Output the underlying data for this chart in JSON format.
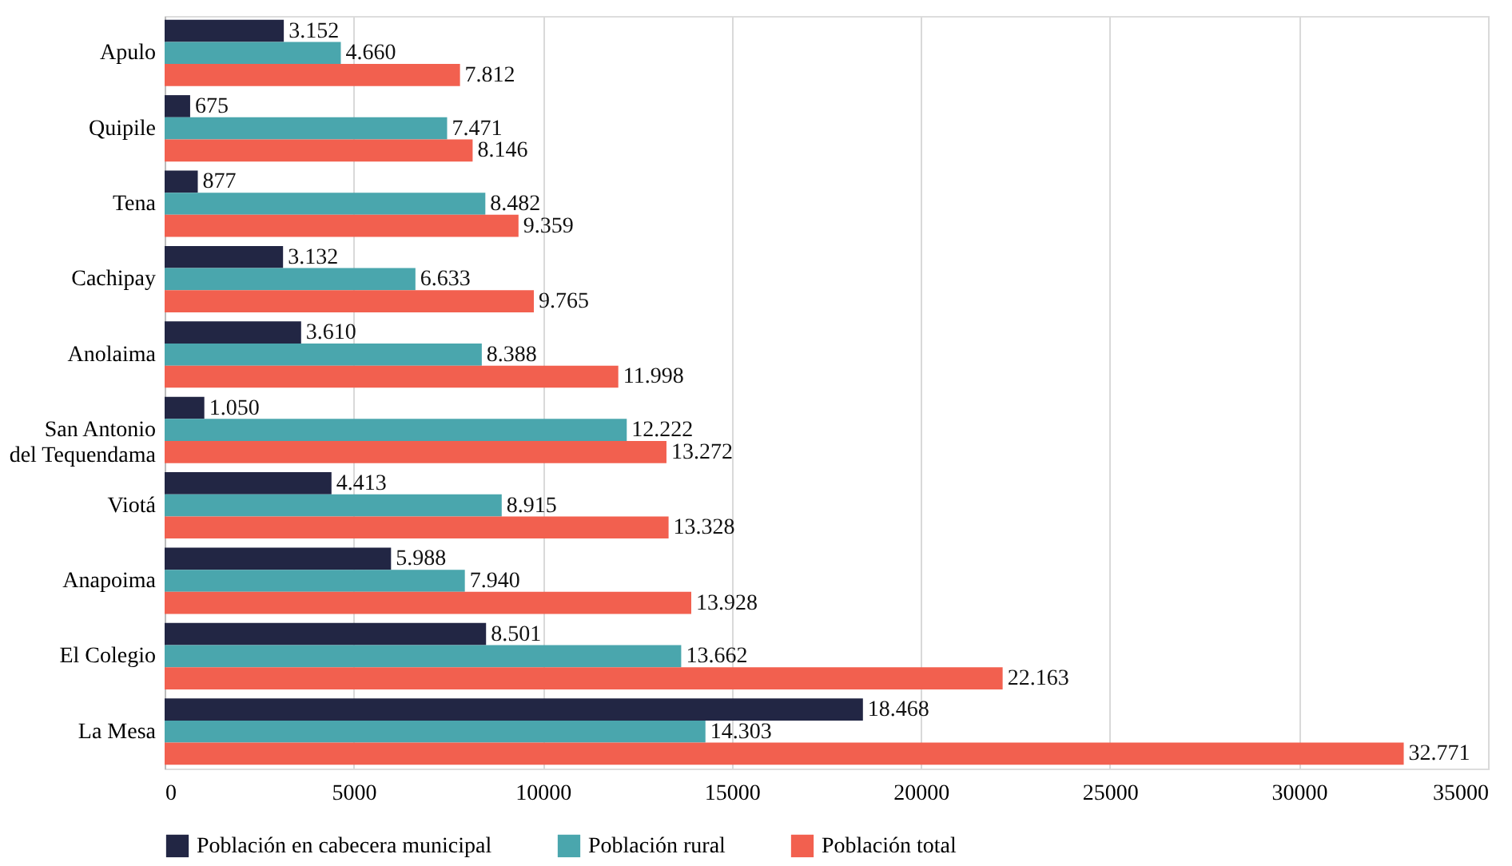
{
  "chart_data": {
    "type": "bar",
    "orientation": "horizontal",
    "categories": [
      "Apulo",
      "Quipile",
      "Tena",
      "Cachipay",
      "Anolaima",
      "San Antonio\ndel Tequendama",
      "Viotá",
      "Anapoima",
      "El Colegio",
      "La Mesa"
    ],
    "series": [
      {
        "name": "Población en cabecera municipal",
        "color": "#222644",
        "values": [
          3152,
          675,
          877,
          3132,
          3610,
          1050,
          4413,
          5988,
          8501,
          18468
        ],
        "value_labels": [
          "3.152",
          "675",
          "877",
          "3.132",
          "3.610",
          "1.050",
          "4.413",
          "5.988",
          "8.501",
          "18.468"
        ]
      },
      {
        "name": "Población rural",
        "color": "#4aa6ad",
        "values": [
          4660,
          7471,
          8482,
          6633,
          8388,
          12222,
          8915,
          7940,
          13662,
          14303
        ],
        "value_labels": [
          "4.660",
          "7.471",
          "8.482",
          "6.633",
          "8.388",
          "12.222",
          "8.915",
          "7.940",
          "13.662",
          "14.303"
        ]
      },
      {
        "name": "Población total",
        "color": "#f2604f",
        "values": [
          7812,
          8146,
          9359,
          9765,
          11998,
          13272,
          13328,
          13928,
          22163,
          32771
        ],
        "value_labels": [
          "7.812",
          "8.146",
          "9.359",
          "9.765",
          "11.998",
          "13.272",
          "13.328",
          "13.928",
          "22.163",
          "32.771"
        ]
      }
    ],
    "xlim": [
      0,
      35000
    ],
    "xticks": [
      0,
      5000,
      10000,
      15000,
      20000,
      25000,
      30000,
      35000
    ],
    "grid": "x",
    "legend": "bottom"
  }
}
